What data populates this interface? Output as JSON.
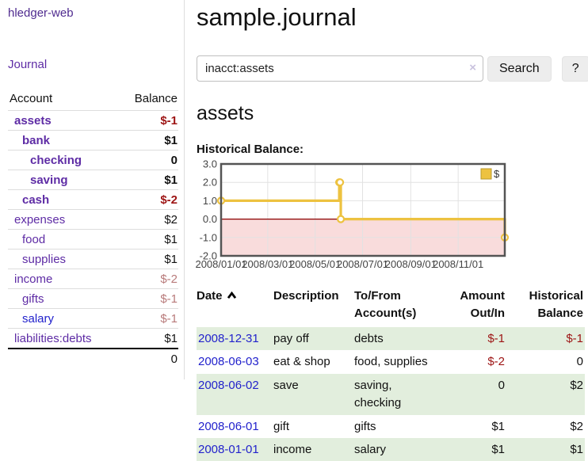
{
  "app": {
    "brand": "hledger-web",
    "nav_journal": "Journal"
  },
  "sidebar": {
    "header": {
      "account": "Account",
      "balance": "Balance"
    },
    "accounts": [
      {
        "name": "assets",
        "balance": "$-1"
      },
      {
        "name": "bank",
        "balance": "$1"
      },
      {
        "name": "checking",
        "balance": "0"
      },
      {
        "name": "saving",
        "balance": "$1"
      },
      {
        "name": "cash",
        "balance": "$-2"
      },
      {
        "name": "expenses",
        "balance": "$2"
      },
      {
        "name": "food",
        "balance": "$1"
      },
      {
        "name": "supplies",
        "balance": "$1"
      },
      {
        "name": "income",
        "balance": "$-2"
      },
      {
        "name": "gifts",
        "balance": "$-1"
      },
      {
        "name": "salary",
        "balance": "$-1"
      },
      {
        "name": "liabilities:debts",
        "balance": "$1"
      }
    ],
    "total": "0"
  },
  "header": {
    "title": "sample.journal"
  },
  "search": {
    "value": "inacct:assets",
    "clear_icon": "×",
    "button_label": "Search",
    "help_label": "?"
  },
  "account_page": {
    "heading": "assets",
    "chart_label": "Historical Balance:"
  },
  "chart_data": {
    "type": "line",
    "step": true,
    "title": "Historical Balance:",
    "x": [
      "2008-01-01",
      "2008-06-01",
      "2008-06-02",
      "2008-06-03",
      "2008-12-31"
    ],
    "series": [
      {
        "name": "$",
        "color": "#edc240",
        "values": [
          1,
          2,
          2,
          0,
          -1
        ]
      }
    ],
    "ylim": [
      -2,
      3
    ],
    "yticks": [
      3,
      2,
      1,
      0,
      -1,
      -2
    ],
    "xticks": [
      "2008/01/01",
      "2008/03/01",
      "2008/05/01",
      "2008/07/01",
      "2008/09/01",
      "2008/11/01"
    ],
    "xrange": [
      "2008-01-01",
      "2008-12-31"
    ],
    "legend": {
      "label": "$",
      "position": "top-right"
    },
    "grid": true,
    "zero_line_color": "#8b0000",
    "negative_region_fill": "#f9dcdc",
    "border_color": "#545454"
  },
  "register": {
    "columns": {
      "date": "Date",
      "description": "Description",
      "accounts": "To/From Account(s)",
      "amount": "Amount Out/In",
      "balance": "Historical Balance"
    },
    "rows": [
      {
        "date": "2008-12-31",
        "description": "pay off",
        "accounts": "debts",
        "amount": "$-1",
        "balance": "$-1"
      },
      {
        "date": "2008-06-03",
        "description": "eat & shop",
        "accounts": "food, supplies",
        "amount": "$-2",
        "balance": "0"
      },
      {
        "date": "2008-06-02",
        "description": "save",
        "accounts": "saving, checking",
        "amount": "0",
        "balance": "$2"
      },
      {
        "date": "2008-06-01",
        "description": "gift",
        "accounts": "gifts",
        "amount": "$1",
        "balance": "$2"
      },
      {
        "date": "2008-01-01",
        "description": "income",
        "accounts": "salary",
        "amount": "$1",
        "balance": "$1"
      }
    ]
  },
  "colors": {
    "accent_purple": "#5e2ca5",
    "link_blue": "#2222cc",
    "negative": "#9d1414",
    "negative_muted": "#b87a7a",
    "row_stripe_green": "#e2eedd",
    "chart_line": "#edc240"
  }
}
